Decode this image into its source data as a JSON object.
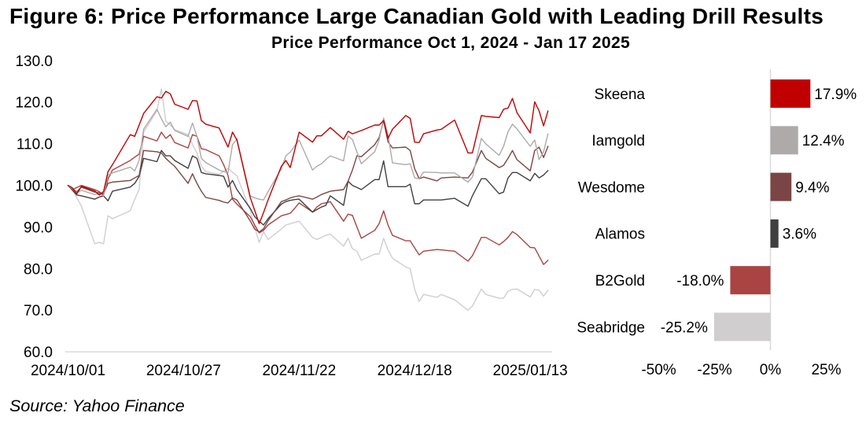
{
  "figure": {
    "title": "Figure 6: Price Performance Large Canadian Gold with Leading Drill Results",
    "source": "Source: Yahoo Finance"
  },
  "chart_data": [
    {
      "type": "line",
      "title": "Price Performance Oct 1, 2024 - Jan 17 2025",
      "xlabel": "",
      "ylabel": "",
      "ylim": [
        60,
        130
      ],
      "xlim": [
        "2024-10-01",
        "2025-01-17"
      ],
      "y_tick_values": [
        130,
        120,
        110,
        100,
        90,
        80,
        70,
        60
      ],
      "y_tick_labels": [
        "130.0",
        "120.0",
        "110.0",
        "100.0",
        "90.0",
        "80.0",
        "70.0",
        "60.0"
      ],
      "x_tick_values": [
        "2024-10-01",
        "2024-10-27",
        "2024-11-22",
        "2024-12-18",
        "2025-01-13"
      ],
      "x_tick_labels": [
        "2024/10/01",
        "2024/10/27",
        "2024/11/22",
        "2024/12/18",
        "2025/01/13"
      ],
      "grid": false,
      "legend": "none",
      "x": [
        "2024-10-01",
        "2024-10-02",
        "2024-10-03",
        "2024-10-04",
        "2024-10-07",
        "2024-10-08",
        "2024-10-09",
        "2024-10-10",
        "2024-10-11",
        "2024-10-15",
        "2024-10-16",
        "2024-10-17",
        "2024-10-18",
        "2024-10-21",
        "2024-10-22",
        "2024-10-23",
        "2024-10-24",
        "2024-10-25",
        "2024-10-28",
        "2024-10-29",
        "2024-10-30",
        "2024-10-31",
        "2024-11-01",
        "2024-11-04",
        "2024-11-05",
        "2024-11-06",
        "2024-11-07",
        "2024-11-08",
        "2024-11-11",
        "2024-11-12",
        "2024-11-13",
        "2024-11-14",
        "2024-11-15",
        "2024-11-18",
        "2024-11-19",
        "2024-11-20",
        "2024-11-21",
        "2024-11-22",
        "2024-11-25",
        "2024-11-26",
        "2024-11-27",
        "2024-11-28",
        "2024-11-29",
        "2024-12-02",
        "2024-12-03",
        "2024-12-04",
        "2024-12-05",
        "2024-12-06",
        "2024-12-09",
        "2024-12-10",
        "2024-12-11",
        "2024-12-12",
        "2024-12-13",
        "2024-12-16",
        "2024-12-17",
        "2024-12-18",
        "2024-12-19",
        "2024-12-20",
        "2024-12-23",
        "2024-12-24",
        "2024-12-27",
        "2024-12-30",
        "2024-12-31",
        "2025-01-02",
        "2025-01-03",
        "2025-01-06",
        "2025-01-07",
        "2025-01-08",
        "2025-01-09",
        "2025-01-10",
        "2025-01-13",
        "2025-01-14",
        "2025-01-15",
        "2025-01-16",
        "2025-01-17"
      ],
      "series": [
        {
          "name": "Skeena",
          "color": "#C00000",
          "values": [
            100.0,
            99.4,
            98.0,
            99.8,
            98.7,
            97.7,
            98.5,
            103.3,
            105.0,
            112.2,
            111.8,
            114.5,
            117.3,
            121.3,
            121.0,
            122.6,
            122.0,
            119.5,
            118.3,
            120.4,
            120.3,
            115.6,
            114.7,
            113.8,
            111.5,
            109.2,
            112.8,
            110.9,
            97.1,
            94.0,
            90.8,
            93.5,
            96.5,
            104.6,
            106.0,
            104.3,
            108.5,
            112.8,
            110.4,
            111.9,
            111.9,
            112.9,
            113.9,
            111.1,
            113.0,
            112.4,
            112.8,
            113.2,
            114.5,
            114.5,
            115.6,
            111.3,
            113.5,
            116.8,
            116.1,
            110.4,
            110.3,
            112.4,
            113.3,
            113.5,
            115.7,
            107.8,
            107.8,
            116.8,
            116.6,
            116.3,
            118.3,
            118.6,
            120.9,
            117.5,
            112.6,
            120.1,
            117.9,
            114.3,
            117.9
          ]
        },
        {
          "name": "Iamgold",
          "color": "#AEAAAA",
          "values": [
            100.0,
            99.2,
            98.3,
            98.8,
            97.8,
            98.0,
            97.5,
            102.5,
            103.0,
            104.4,
            103.5,
            106.0,
            113.5,
            118.3,
            116.0,
            114.1,
            115.2,
            113.2,
            111.8,
            115.0,
            111.8,
            106.5,
            105.5,
            103.7,
            103.3,
            103.1,
            109.8,
            111.2,
            97.5,
            97.0,
            96.7,
            96.5,
            98.5,
            104.0,
            107.1,
            108.0,
            109.5,
            110.9,
            103.7,
            104.6,
            105.2,
            106.2,
            107.1,
            105.9,
            111.9,
            111.0,
            108.0,
            105.2,
            108.1,
            110.9,
            116.2,
            112.2,
            105.4,
            105.0,
            105.2,
            101.8,
            101.6,
            103.2,
            103.1,
            103.0,
            103.0,
            100.8,
            102.0,
            111.3,
            110.0,
            107.2,
            109.4,
            112.9,
            114.7,
            113.6,
            109.4,
            110.9,
            106.2,
            108.1,
            112.4
          ]
        },
        {
          "name": "Wesdome",
          "color": "#7B4545",
          "values": [
            100.0,
            99.0,
            98.5,
            99.6,
            98.4,
            98.2,
            98.0,
            100.5,
            100.8,
            101.2,
            101.8,
            102.4,
            108.4,
            108.1,
            107.8,
            106.5,
            105.5,
            104.6,
            100.5,
            102.8,
            100.5,
            98.6,
            97.1,
            96.4,
            96.0,
            95.8,
            97.0,
            96.5,
            91.5,
            89.5,
            88.8,
            89.6,
            91.5,
            96.1,
            96.5,
            97.0,
            97.3,
            97.5,
            96.7,
            97.2,
            97.8,
            98.2,
            98.6,
            99.0,
            101.0,
            103.7,
            107.1,
            106.9,
            109.8,
            111.5,
            115.6,
            110.5,
            109.0,
            109.2,
            108.4,
            104.0,
            101.6,
            102.0,
            101.1,
            101.8,
            102.0,
            101.8,
            103.2,
            108.4,
            106.5,
            104.3,
            104.8,
            106.5,
            108.4,
            106.2,
            103.5,
            108.4,
            109.2,
            106.7,
            109.4
          ]
        },
        {
          "name": "Alamos",
          "color": "#404040",
          "values": [
            100.0,
            98.8,
            97.7,
            97.5,
            96.7,
            97.2,
            97.5,
            96.3,
            98.6,
            99.6,
            100.5,
            102.2,
            106.5,
            105.7,
            108.4,
            107.1,
            107.1,
            106.0,
            104.1,
            107.1,
            106.5,
            103.1,
            102.8,
            102.4,
            102.2,
            99.6,
            101.2,
            99.0,
            94.5,
            92.5,
            91.4,
            90.5,
            92.0,
            95.5,
            96.1,
            96.4,
            96.6,
            96.7,
            93.6,
            94.2,
            94.8,
            95.2,
            97.5,
            95.2,
            101.0,
            100.0,
            99.5,
            99.0,
            101.4,
            101.4,
            105.9,
            99.7,
            99.7,
            99.7,
            100.3,
            95.6,
            95.6,
            96.5,
            96.5,
            96.5,
            96.9,
            95.0,
            97.5,
            101.6,
            101.6,
            98.0,
            98.4,
            101.8,
            103.1,
            103.1,
            101.1,
            102.9,
            101.8,
            102.5,
            103.6
          ]
        },
        {
          "name": "B2Gold",
          "color": "#A94442",
          "values": [
            100.0,
            99.0,
            99.5,
            100.0,
            99.0,
            98.5,
            97.7,
            101.5,
            103.7,
            106.0,
            106.8,
            107.5,
            111.8,
            110.7,
            112.8,
            111.3,
            112.2,
            110.3,
            109.0,
            112.2,
            111.8,
            108.8,
            108.6,
            107.1,
            105.0,
            102.4,
            96.7,
            95.5,
            92.5,
            90.5,
            88.6,
            89.2,
            90.5,
            92.7,
            93.0,
            93.3,
            94.5,
            95.8,
            93.6,
            94.8,
            95.6,
            95.8,
            96.1,
            91.4,
            93.1,
            92.8,
            90.0,
            87.3,
            89.2,
            90.8,
            93.9,
            90.5,
            88.0,
            86.7,
            86.7,
            85.0,
            83.3,
            84.2,
            84.6,
            84.5,
            84.2,
            81.8,
            83.1,
            87.5,
            87.5,
            85.7,
            86.5,
            87.5,
            88.9,
            88.2,
            85.1,
            85.0,
            83.0,
            81.0,
            82.0
          ]
        },
        {
          "name": "Seabridge",
          "color": "#D0CECE",
          "values": [
            100.0,
            99.0,
            97.0,
            95.0,
            86.0,
            86.3,
            86.0,
            92.7,
            92.0,
            93.9,
            96.7,
            99.0,
            112.8,
            117.9,
            123.2,
            115.4,
            114.5,
            113.4,
            112.2,
            109.8,
            107.8,
            104.6,
            103.3,
            102.7,
            103.4,
            104.1,
            103.2,
            102.3,
            94.0,
            90.0,
            86.3,
            88.9,
            87.0,
            89.5,
            90.5,
            90.8,
            91.1,
            91.4,
            87.5,
            87.0,
            87.5,
            88.0,
            88.3,
            85.4,
            87.3,
            84.8,
            84.2,
            82.0,
            83.5,
            83.5,
            87.3,
            84.5,
            82.5,
            80.4,
            80.0,
            75.0,
            72.1,
            73.8,
            73.1,
            73.8,
            72.5,
            70.0,
            71.0,
            75.1,
            73.8,
            72.9,
            72.9,
            74.6,
            75.0,
            75.1,
            73.2,
            75.0,
            74.8,
            73.4,
            74.8
          ]
        }
      ]
    },
    {
      "type": "bar",
      "orientation": "horizontal",
      "title": "",
      "xlabel": "",
      "ylabel": "",
      "categories": [
        "Skeena",
        "Iamgold",
        "Wesdome",
        "Alamos",
        "B2Gold",
        "Seabridge"
      ],
      "values": [
        17.9,
        12.4,
        9.4,
        3.6,
        -18.0,
        -25.2
      ],
      "value_labels": [
        "17.9%",
        "12.4%",
        "9.4%",
        "3.6%",
        "-18.0%",
        "-25.2%"
      ],
      "colors": [
        "#C00000",
        "#AEAAAA",
        "#7B4545",
        "#404040",
        "#A94442",
        "#D0CECE"
      ],
      "unit": "%",
      "xlim": [
        -50,
        25
      ],
      "x_tick_values": [
        -50,
        -25,
        0,
        25
      ],
      "x_tick_labels": [
        "-50%",
        "-25%",
        "0%",
        "25%"
      ],
      "grid": false,
      "legend": "none"
    }
  ]
}
